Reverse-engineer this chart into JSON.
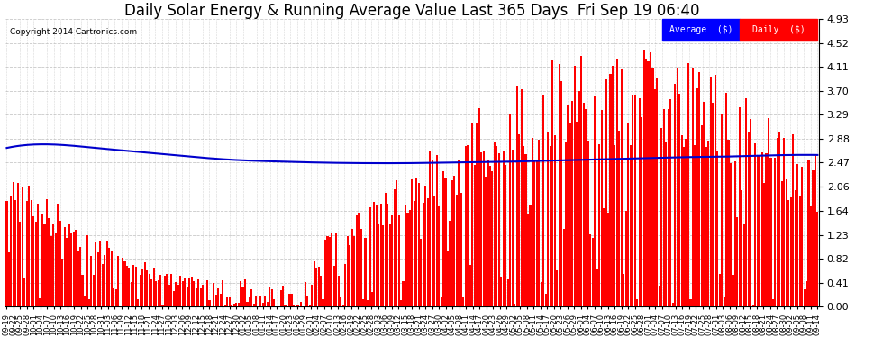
{
  "title": "Daily Solar Energy & Running Average Value Last 365 Days  Fri Sep 19 06:40",
  "copyright": "Copyright 2014 Cartronics.com",
  "ylim": [
    0.0,
    4.93
  ],
  "yticks": [
    0.0,
    0.41,
    0.82,
    1.23,
    1.64,
    2.06,
    2.47,
    2.88,
    3.29,
    3.7,
    4.11,
    4.52,
    4.93
  ],
  "bar_color": "#ff0000",
  "avg_color": "#0000cc",
  "bg_color": "#ffffff",
  "grid_color": "#bbbbbb",
  "title_fontsize": 12,
  "legend_blue_label": "Average  ($)",
  "legend_red_label": "Daily  ($)",
  "x_tick_labels": [
    "09-19",
    "09-22",
    "09-25",
    "09-28",
    "10-01",
    "10-04",
    "10-07",
    "10-10",
    "10-13",
    "10-16",
    "10-19",
    "10-22",
    "10-25",
    "10-28",
    "10-31",
    "11-03",
    "11-06",
    "11-09",
    "11-12",
    "11-15",
    "11-18",
    "11-21",
    "11-24",
    "11-27",
    "11-30",
    "12-03",
    "12-06",
    "12-09",
    "12-12",
    "12-15",
    "12-18",
    "12-21",
    "12-24",
    "12-27",
    "12-30",
    "01-02",
    "01-05",
    "01-08",
    "01-11",
    "01-14",
    "01-17",
    "01-20",
    "01-23",
    "01-26",
    "01-29",
    "02-01",
    "02-04",
    "02-07",
    "02-10",
    "02-13",
    "02-16",
    "02-19",
    "02-22",
    "02-25",
    "02-28",
    "03-03",
    "03-06",
    "03-09",
    "03-12",
    "03-15",
    "03-18",
    "03-21",
    "03-24",
    "03-27",
    "03-30",
    "04-02",
    "04-05",
    "04-08",
    "04-11",
    "04-14",
    "04-17",
    "04-20",
    "04-23",
    "04-26",
    "04-29",
    "05-02",
    "05-05",
    "05-08",
    "05-11",
    "05-14",
    "05-17",
    "05-20",
    "05-23",
    "05-26",
    "05-29",
    "06-01",
    "06-04",
    "06-07",
    "06-10",
    "06-13",
    "06-16",
    "06-19",
    "06-22",
    "06-25",
    "06-28",
    "07-01",
    "07-04",
    "07-07",
    "07-10",
    "07-13",
    "07-16",
    "07-19",
    "07-22",
    "07-25",
    "07-28",
    "07-31",
    "08-03",
    "08-06",
    "08-09",
    "08-12",
    "08-15",
    "08-18",
    "08-21",
    "08-24",
    "08-27",
    "08-30",
    "09-02",
    "09-05",
    "09-08",
    "09-11",
    "09-14"
  ],
  "n_days": 365,
  "avg_line_x": [
    0,
    20,
    40,
    60,
    80,
    100,
    120,
    140,
    160,
    180,
    200,
    220,
    240,
    260,
    280,
    300,
    320,
    340,
    364
  ],
  "avg_line_y": [
    2.72,
    2.78,
    2.72,
    2.65,
    2.58,
    2.52,
    2.49,
    2.47,
    2.46,
    2.46,
    2.47,
    2.48,
    2.5,
    2.52,
    2.54,
    2.56,
    2.57,
    2.59,
    2.6
  ]
}
